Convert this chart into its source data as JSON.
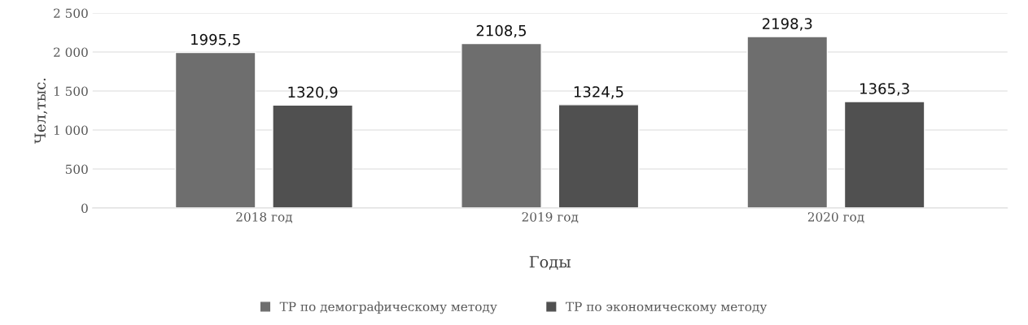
{
  "chart_data": {
    "type": "bar",
    "xlabel": "Годы",
    "ylabel": "Чел,тыс.",
    "categories": [
      "2018 год",
      "2019 год",
      "2020 год"
    ],
    "series": [
      {
        "name": "ТР по демографическому методу",
        "color": "#6e6e6e",
        "values": [
          1995.5,
          2108.5,
          2198.3
        ],
        "value_labels": [
          "1995,5",
          "2108,5",
          "2198,3"
        ]
      },
      {
        "name": "ТР по экономическому методу",
        "color": "#505050",
        "values": [
          1320.9,
          1324.5,
          1365.3
        ],
        "value_labels": [
          "1320,9",
          "1324,5",
          "1365,3"
        ]
      }
    ],
    "ylim": [
      0,
      2500
    ],
    "yticks": [
      0,
      500,
      {
        "value": 1000,
        "label": "1 000"
      },
      {
        "value": 1500,
        "label": "1 500"
      },
      {
        "value": 2000,
        "label": "2 000"
      },
      {
        "value": 2500,
        "label": "2 500"
      }
    ],
    "grid": "y",
    "legend": "bottom"
  }
}
